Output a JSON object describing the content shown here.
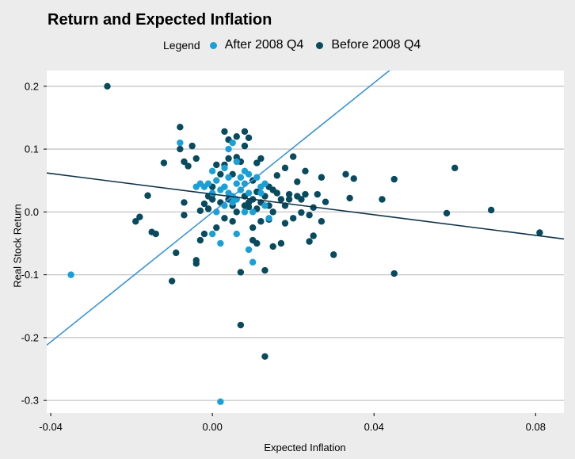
{
  "chart_data": {
    "type": "scatter",
    "title": "Return and Expected Inflation",
    "xlabel": "Expected Inflation",
    "ylabel": "Real Stock Return",
    "xlim": [
      -0.041,
      0.087
    ],
    "ylim": [
      -0.32,
      0.225
    ],
    "xticks": [
      -0.04,
      0.0,
      0.04,
      0.08
    ],
    "xtick_labels": [
      "-0.04",
      "0.00",
      "0.04",
      "0.08"
    ],
    "yticks": [
      -0.3,
      -0.2,
      -0.1,
      0.0,
      0.1,
      0.2
    ],
    "ytick_labels": [
      "-0.3",
      "-0.2",
      "-0.1",
      "0.0",
      "0.1",
      "0.2"
    ],
    "grid": "horizontal",
    "legend": {
      "title": "Legend",
      "position": "top"
    },
    "series": [
      {
        "name": "After 2008 Q4",
        "color": "#1aa0d6",
        "points": [
          [
            -0.035,
            -0.1
          ],
          [
            0.002,
            -0.302
          ],
          [
            -0.008,
            0.11
          ],
          [
            0.004,
            0.1
          ],
          [
            0.005,
            0.11
          ],
          [
            0.003,
            0.07
          ],
          [
            0.006,
            0.08
          ],
          [
            0.007,
            0.055
          ],
          [
            0.008,
            0.065
          ],
          [
            0.009,
            0.06
          ],
          [
            -0.003,
            0.045
          ],
          [
            -0.002,
            0.04
          ],
          [
            -0.001,
            0.045
          ],
          [
            0.0,
            0.03
          ],
          [
            0.001,
            0.05
          ],
          [
            0.002,
            0.035
          ],
          [
            0.003,
            0.04
          ],
          [
            0.004,
            0.03
          ],
          [
            0.005,
            0.025
          ],
          [
            0.006,
            0.02
          ],
          [
            0.007,
            0.035
          ],
          [
            0.008,
            0.045
          ],
          [
            0.009,
            0.03
          ],
          [
            0.011,
            0.055
          ],
          [
            0.012,
            0.03
          ],
          [
            0.013,
            0.01
          ],
          [
            0.014,
            -0.01
          ],
          [
            0.01,
            0.0
          ],
          [
            0.009,
            -0.06
          ],
          [
            0.006,
            -0.035
          ],
          [
            0.002,
            -0.05
          ],
          [
            0.0,
            -0.035
          ],
          [
            0.01,
            -0.08
          ],
          [
            0.0,
            0.065
          ],
          [
            0.004,
            0.055
          ],
          [
            0.003,
            0.01
          ],
          [
            0.005,
            0.015
          ],
          [
            0.012,
            0.04
          ],
          [
            0.013,
            0.045
          ],
          [
            0.001,
            0.0
          ],
          [
            0.008,
            0.0
          ],
          [
            -0.004,
            0.04
          ],
          [
            0.006,
            0.045
          ]
        ]
      },
      {
        "name": "Before 2008 Q4",
        "color": "#084a5e",
        "points": [
          [
            -0.026,
            0.2
          ],
          [
            0.081,
            -0.033
          ],
          [
            0.069,
            0.003
          ],
          [
            0.06,
            0.07
          ],
          [
            0.058,
            -0.002
          ],
          [
            0.045,
            0.052
          ],
          [
            0.045,
            -0.098
          ],
          [
            0.042,
            0.02
          ],
          [
            0.035,
            0.053
          ],
          [
            0.034,
            0.022
          ],
          [
            0.033,
            0.06
          ],
          [
            0.03,
            -0.068
          ],
          [
            0.028,
            0.016
          ],
          [
            0.027,
            0.055
          ],
          [
            0.025,
            0.007
          ],
          [
            0.025,
            -0.038
          ],
          [
            0.024,
            -0.047
          ],
          [
            0.023,
            0.028
          ],
          [
            0.022,
            -0.001
          ],
          [
            0.021,
            0.025
          ],
          [
            0.02,
            0.088
          ],
          [
            0.019,
            0.028
          ],
          [
            0.018,
            0.07
          ],
          [
            0.018,
            -0.018
          ],
          [
            0.017,
            -0.05
          ],
          [
            0.016,
            0.058
          ],
          [
            0.015,
            0.035
          ],
          [
            0.015,
            -0.055
          ],
          [
            0.014,
            0.01
          ],
          [
            0.014,
            -0.012
          ],
          [
            0.013,
            -0.23
          ],
          [
            0.013,
            -0.093
          ],
          [
            0.012,
            0.085
          ],
          [
            0.012,
            0.015
          ],
          [
            0.011,
            0.078
          ],
          [
            0.011,
            -0.05
          ],
          [
            0.01,
            0.05
          ],
          [
            0.01,
            -0.025
          ],
          [
            0.009,
            0.118
          ],
          [
            0.009,
            0.008
          ],
          [
            0.008,
            0.128
          ],
          [
            0.008,
            0.105
          ],
          [
            0.007,
            0.08
          ],
          [
            0.007,
            -0.18
          ],
          [
            0.007,
            -0.096
          ],
          [
            0.006,
            0.12
          ],
          [
            0.006,
            0.087
          ],
          [
            0.005,
            0.01
          ],
          [
            0.005,
            0.06
          ],
          [
            0.004,
            0.115
          ],
          [
            0.003,
            0.128
          ],
          [
            0.003,
            0.075
          ],
          [
            0.002,
            0.015
          ],
          [
            0.001,
            0.075
          ],
          [
            0.0,
            0.02
          ],
          [
            -0.001,
            0.025
          ],
          [
            -0.002,
            -0.035
          ],
          [
            -0.003,
            -0.045
          ],
          [
            -0.004,
            0.085
          ],
          [
            -0.005,
            0.105
          ],
          [
            -0.006,
            0.073
          ],
          [
            -0.007,
            0.08
          ],
          [
            -0.008,
            0.1
          ],
          [
            -0.008,
            0.135
          ],
          [
            -0.009,
            -0.065
          ],
          [
            -0.01,
            -0.11
          ],
          [
            -0.012,
            0.078
          ],
          [
            -0.014,
            -0.035
          ],
          [
            -0.015,
            -0.032
          ],
          [
            -0.016,
            0.026
          ],
          [
            -0.018,
            -0.008
          ],
          [
            -0.019,
            -0.015
          ],
          [
            -0.007,
            0.015
          ],
          [
            -0.007,
            -0.005
          ],
          [
            -0.004,
            -0.077
          ],
          [
            -0.004,
            -0.082
          ],
          [
            -0.002,
            0.013
          ],
          [
            -0.001,
            0.005
          ],
          [
            0.0,
            0.028
          ],
          [
            0.001,
            -0.025
          ],
          [
            0.003,
            -0.01
          ],
          [
            0.004,
            0.02
          ],
          [
            0.006,
            0.0
          ],
          [
            0.008,
            0.025
          ],
          [
            0.009,
            0.015
          ],
          [
            0.01,
            0.02
          ],
          [
            0.011,
            0.005
          ],
          [
            0.012,
            -0.015
          ],
          [
            0.013,
            0.025
          ],
          [
            0.014,
            0.04
          ],
          [
            0.015,
            0.0
          ],
          [
            0.016,
            0.03
          ],
          [
            0.017,
            0.02
          ],
          [
            0.018,
            0.01
          ],
          [
            0.019,
            0.02
          ],
          [
            0.02,
            -0.01
          ],
          [
            0.021,
            0.048
          ],
          [
            0.022,
            0.02
          ],
          [
            0.023,
            0.065
          ],
          [
            0.024,
            -0.005
          ],
          [
            0.026,
            0.028
          ],
          [
            0.027,
            -0.015
          ],
          [
            0.01,
            -0.045
          ],
          [
            0.011,
            0.032
          ],
          [
            0.005,
            -0.015
          ],
          [
            -0.003,
            0.002
          ],
          [
            0.002,
            0.06
          ],
          [
            0.004,
            0.085
          ],
          [
            0.0,
            0.04
          ],
          [
            0.008,
            0.01
          ]
        ]
      }
    ],
    "fit_lines": [
      {
        "series": "After 2008 Q4",
        "color": "#3a93d6",
        "points": [
          [
            -0.041,
            -0.212
          ],
          [
            0.044,
            0.226
          ]
        ]
      },
      {
        "series": "Before 2008 Q4",
        "color": "#0d3348",
        "points": [
          [
            -0.041,
            0.062
          ],
          [
            0.087,
            -0.043
          ]
        ]
      }
    ]
  }
}
